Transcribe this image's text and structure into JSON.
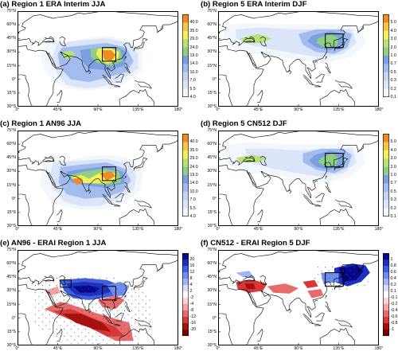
{
  "figure": {
    "lat_labels": [
      "75°N",
      "60°N",
      "45°N",
      "30°N",
      "15°N",
      "0°",
      "15°S",
      "30°S"
    ],
    "lon_labels": [
      "0°",
      "45°E",
      "90°E",
      "135°E",
      "180°"
    ]
  },
  "panels": [
    {
      "title": "(a) Region 1 ERA Interim JJA",
      "levels": [
        "40.0",
        "35.0",
        "29.0",
        "24.0",
        "19.0",
        "14.0",
        "10.0",
        "7.0",
        "5.5",
        "4.0"
      ],
      "colors": [
        "#f08a24",
        "#f9c44d",
        "#f3f05e",
        "#b9e07a",
        "#8fcf83",
        "#7c9fe0",
        "#a3bcef",
        "#c5d4f5",
        "#dbe5fa",
        "#f2f6fd"
      ]
    },
    {
      "title": "(b) Region 5 ERA Interim DJF",
      "levels": [
        "5.0",
        "4.0",
        "3.0",
        "2.0",
        "1.0",
        "0.7",
        "0.5",
        "0.3",
        "0.2",
        "0.1"
      ],
      "colors": [
        "#f08a24",
        "#f9c44d",
        "#f3f05e",
        "#b9e07a",
        "#8fcf83",
        "#7c9fe0",
        "#a3bcef",
        "#c5d4f5",
        "#dbe5fa",
        "#f2f6fd"
      ]
    },
    {
      "title": "(c) Region 1 AN96 JJA",
      "levels": [
        "40.0",
        "35.0",
        "29.0",
        "24.0",
        "19.0",
        "14.0",
        "10.0",
        "7.0",
        "5.5",
        "4.0"
      ],
      "colors": [
        "#f08a24",
        "#f9c44d",
        "#f3f05e",
        "#b9e07a",
        "#8fcf83",
        "#7c9fe0",
        "#a3bcef",
        "#c5d4f5",
        "#dbe5fa",
        "#f2f6fd"
      ]
    },
    {
      "title": "(d) Region 5 CN512 DJF",
      "levels": [
        "5.0",
        "4.0",
        "3.0",
        "2.0",
        "1.0",
        "0.7",
        "0.5",
        "0.3",
        "0.2",
        "0.1"
      ],
      "colors": [
        "#f08a24",
        "#f9c44d",
        "#f3f05e",
        "#b9e07a",
        "#8fcf83",
        "#7c9fe0",
        "#a3bcef",
        "#c5d4f5",
        "#dbe5fa",
        "#f2f6fd"
      ]
    },
    {
      "title": "(e) AN96 - ERAI Region 1 JJA",
      "levels": [
        "20",
        "16",
        "12",
        "8",
        "4",
        "2",
        "-2",
        "-4",
        "-8",
        "-12",
        "-16",
        "-20"
      ],
      "colors": [
        "#08088a",
        "#1c2fbf",
        "#3f5fe0",
        "#6d8df0",
        "#a0b4f6",
        "#d6dff9",
        "#ffffff",
        "#fbd3d3",
        "#f3a3a3",
        "#e86b6b",
        "#d73838",
        "#a80f0f",
        "#7a0000"
      ]
    },
    {
      "title": "(f) CN512 - ERAI Region 5 DJF",
      "levels": [
        "1",
        "0.8",
        "0.6",
        "0.4",
        "0.2",
        "0.1",
        "-0.1",
        "-0.2",
        "-0.4",
        "-0.6",
        "-0.8",
        "-1"
      ],
      "colors": [
        "#08088a",
        "#1c2fbf",
        "#3f5fe0",
        "#6d8df0",
        "#a0b4f6",
        "#d6dff9",
        "#ffffff",
        "#fbd3d3",
        "#f3a3a3",
        "#e86b6b",
        "#d73838",
        "#a80f0f",
        "#7a0000"
      ]
    }
  ]
}
